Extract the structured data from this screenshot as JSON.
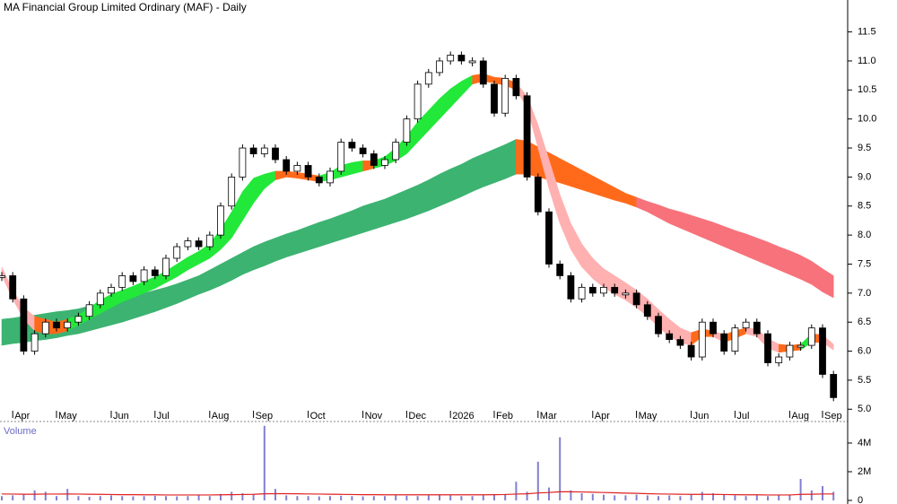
{
  "chart_data": [
    {
      "type": "candlestick",
      "title": "MA Financial Group Limited Ordinary (MAF) - Daily",
      "categories": [
        null,
        "Apr",
        null,
        null,
        null,
        "May",
        null,
        null,
        null,
        null,
        "Jun",
        null,
        null,
        null,
        "Jul",
        null,
        null,
        null,
        null,
        "Aug",
        null,
        null,
        null,
        "Sep",
        null,
        null,
        null,
        null,
        "Oct",
        null,
        null,
        null,
        null,
        "Nov",
        null,
        null,
        null,
        "Dec",
        null,
        null,
        null,
        "2026",
        null,
        null,
        null,
        "Feb",
        null,
        null,
        null,
        "Mar",
        null,
        null,
        null,
        null,
        "Apr",
        null,
        null,
        null,
        "May",
        null,
        null,
        null,
        null,
        "Jun",
        null,
        null,
        null,
        "Jul",
        null,
        null,
        null,
        null,
        "Aug",
        null,
        null,
        "Sep",
        null
      ],
      "values": [
        7.3,
        6.9,
        6.0,
        6.3,
        6.5,
        6.4,
        6.5,
        6.6,
        6.8,
        7.0,
        7.1,
        7.3,
        7.2,
        7.4,
        7.3,
        7.6,
        7.8,
        7.9,
        7.8,
        8.0,
        8.5,
        9.0,
        9.5,
        9.4,
        9.5,
        9.3,
        9.1,
        9.2,
        9.0,
        8.9,
        9.1,
        9.6,
        9.5,
        9.4,
        9.2,
        9.3,
        9.6,
        10.0,
        10.6,
        10.8,
        11.0,
        11.1,
        11.0,
        11.0,
        10.6,
        10.1,
        10.7,
        10.4,
        9.0,
        8.4,
        7.5,
        7.3,
        6.9,
        7.1,
        7.0,
        7.1,
        7.0,
        7.0,
        6.8,
        6.6,
        6.3,
        6.2,
        6.1,
        5.9,
        6.5,
        6.3,
        6.0,
        6.4,
        6.5,
        6.3,
        5.8,
        5.9,
        6.1,
        6.1,
        6.4,
        5.6,
        5.2
      ],
      "up_color": "#ffffff",
      "down_color": "#000000",
      "bands": [
        {
          "upper": [
            6.55,
            6.57,
            6.6,
            6.62,
            6.65,
            6.68,
            6.7,
            6.73,
            6.78,
            6.82,
            6.86,
            6.9,
            6.95,
            7.0,
            7.05,
            7.1,
            7.16,
            7.23,
            7.3,
            7.4,
            7.5,
            7.6,
            7.7,
            7.8,
            7.88,
            7.95,
            8.02,
            8.08,
            8.15,
            8.22,
            8.28,
            8.35,
            8.42,
            8.5,
            8.56,
            8.62,
            8.7,
            8.78,
            8.86,
            8.95,
            9.05,
            9.14,
            9.22,
            9.32,
            9.4,
            9.48,
            9.56,
            9.65,
            9.62,
            9.52,
            9.42,
            9.32,
            9.22,
            9.12,
            9.02,
            8.92,
            8.82,
            8.72,
            8.65,
            8.58,
            8.52,
            8.45,
            8.4,
            8.34,
            8.28,
            8.22,
            8.15,
            8.08,
            8.02,
            7.95,
            7.88,
            7.8,
            7.73,
            7.65,
            7.55,
            7.42,
            7.3
          ],
          "lower": [
            6.1,
            6.13,
            6.15,
            6.18,
            6.2,
            6.23,
            6.27,
            6.3,
            6.35,
            6.4,
            6.45,
            6.5,
            6.56,
            6.62,
            6.68,
            6.75,
            6.82,
            6.9,
            6.98,
            7.05,
            7.13,
            7.22,
            7.32,
            7.4,
            7.47,
            7.55,
            7.62,
            7.68,
            7.74,
            7.8,
            7.86,
            7.92,
            7.98,
            8.04,
            8.1,
            8.16,
            8.22,
            8.28,
            8.35,
            8.42,
            8.5,
            8.58,
            8.66,
            8.75,
            8.83,
            8.9,
            8.97,
            9.05,
            9.05,
            9.0,
            8.95,
            8.9,
            8.84,
            8.78,
            8.72,
            8.66,
            8.6,
            8.55,
            8.48,
            8.4,
            8.3,
            8.2,
            8.12,
            8.04,
            7.96,
            7.88,
            7.8,
            7.72,
            7.64,
            7.56,
            7.48,
            7.4,
            7.32,
            7.24,
            7.15,
            7.02,
            6.92
          ],
          "colors": [
            "#3cb371",
            "#3cb371",
            "#3cb371",
            "#3cb371",
            "#3cb371",
            "#3cb371",
            "#3cb371",
            "#3cb371",
            "#3cb371",
            "#3cb371",
            "#3cb371",
            "#3cb371",
            "#3cb371",
            "#3cb371",
            "#3cb371",
            "#3cb371",
            "#3cb371",
            "#3cb371",
            "#3cb371",
            "#3cb371",
            "#3cb371",
            "#3cb371",
            "#3cb371",
            "#3cb371",
            "#3cb371",
            "#3cb371",
            "#3cb371",
            "#3cb371",
            "#3cb371",
            "#3cb371",
            "#3cb371",
            "#3cb371",
            "#3cb371",
            "#3cb371",
            "#3cb371",
            "#3cb371",
            "#3cb371",
            "#3cb371",
            "#3cb371",
            "#3cb371",
            "#3cb371",
            "#3cb371",
            "#3cb371",
            "#3cb371",
            "#3cb371",
            "#3cb371",
            "#3cb371",
            "#3cb371",
            "#ff6a1a",
            "#ff6a1a",
            "#ff6a1a",
            "#ff6a1a",
            "#ff6a1a",
            "#ff6a1a",
            "#ff6a1a",
            "#ff6a1a",
            "#ff6a1a",
            "#ff6a1a",
            "#ff6a1a",
            "#f7727a",
            "#f7727a",
            "#f7727a",
            "#f7727a",
            "#f7727a",
            "#f7727a",
            "#f7727a",
            "#f7727a",
            "#f7727a",
            "#f7727a",
            "#f7727a",
            "#f7727a",
            "#f7727a",
            "#f7727a",
            "#f7727a",
            "#f7727a",
            "#f7727a",
            "#f7727a"
          ]
        },
        {
          "upper": [
            7.45,
            7.05,
            6.75,
            6.6,
            6.55,
            6.5,
            6.55,
            6.62,
            6.75,
            6.88,
            6.98,
            7.05,
            7.12,
            7.2,
            7.28,
            7.38,
            7.5,
            7.62,
            7.72,
            7.85,
            8.1,
            8.4,
            8.75,
            8.98,
            9.05,
            9.1,
            9.1,
            9.08,
            9.05,
            9.02,
            9.08,
            9.2,
            9.25,
            9.28,
            9.28,
            9.35,
            9.5,
            9.7,
            9.95,
            10.15,
            10.35,
            10.52,
            10.65,
            10.75,
            10.78,
            10.72,
            10.7,
            10.62,
            10.4,
            9.9,
            9.3,
            8.7,
            8.2,
            7.85,
            7.6,
            7.42,
            7.3,
            7.18,
            7.05,
            6.9,
            6.72,
            6.55,
            6.4,
            6.32,
            6.38,
            6.35,
            6.28,
            6.35,
            6.4,
            6.38,
            6.22,
            6.12,
            6.1,
            6.12,
            6.3,
            6.28,
            6.12
          ],
          "lower": [
            7.3,
            6.9,
            6.55,
            6.35,
            6.3,
            6.3,
            6.35,
            6.45,
            6.55,
            6.65,
            6.75,
            6.85,
            6.92,
            7.0,
            7.08,
            7.18,
            7.28,
            7.4,
            7.5,
            7.6,
            7.75,
            7.95,
            8.25,
            8.55,
            8.8,
            8.95,
            9.0,
            8.98,
            8.95,
            8.92,
            8.95,
            9.0,
            9.05,
            9.1,
            9.15,
            9.2,
            9.28,
            9.4,
            9.6,
            9.8,
            10.0,
            10.2,
            10.4,
            10.6,
            10.65,
            10.62,
            10.58,
            10.5,
            10.2,
            9.5,
            8.8,
            8.2,
            7.75,
            7.45,
            7.25,
            7.1,
            6.98,
            6.88,
            6.75,
            6.6,
            6.42,
            6.25,
            6.15,
            6.1,
            6.25,
            6.25,
            6.15,
            6.22,
            6.3,
            6.25,
            6.05,
            5.98,
            6.0,
            6.02,
            6.15,
            6.15,
            6.02
          ],
          "colors": [
            "#ff6a1a",
            "#ffb0b0",
            "#ffb0b0",
            "#ffb0b0",
            "#ff6a1a",
            "#ff6a1a",
            "#ff6a1a",
            "#22e83a",
            "#22e83a",
            "#22e83a",
            "#22e83a",
            "#22e83a",
            "#22e83a",
            "#22e83a",
            "#22e83a",
            "#22e83a",
            "#22e83a",
            "#22e83a",
            "#22e83a",
            "#22e83a",
            "#22e83a",
            "#22e83a",
            "#22e83a",
            "#22e83a",
            "#22e83a",
            "#22e83a",
            "#ff6a1a",
            "#ff6a1a",
            "#ff6a1a",
            "#ff6a1a",
            "#22e83a",
            "#22e83a",
            "#22e83a",
            "#22e83a",
            "#ff6a1a",
            "#22e83a",
            "#22e83a",
            "#22e83a",
            "#22e83a",
            "#22e83a",
            "#22e83a",
            "#22e83a",
            "#22e83a",
            "#22e83a",
            "#ff6a1a",
            "#ff6a1a",
            "#ff6a1a",
            "#ff6a1a",
            "#ffb0b0",
            "#ffb0b0",
            "#ffb0b0",
            "#ffb0b0",
            "#ffb0b0",
            "#ffb0b0",
            "#ffb0b0",
            "#ffb0b0",
            "#ffb0b0",
            "#ffb0b0",
            "#ffb0b0",
            "#ffb0b0",
            "#ffb0b0",
            "#ffb0b0",
            "#ffb0b0",
            "#ffb0b0",
            "#ff6a1a",
            "#ff6a1a",
            "#ffb0b0",
            "#ff6a1a",
            "#ff6a1a",
            "#ffb0b0",
            "#ffb0b0",
            "#ffb0b0",
            "#ff6a1a",
            "#ff6a1a",
            "#22e83a",
            "#ff6a1a",
            "#ffb0b0"
          ]
        }
      ],
      "ylim": [
        4.85,
        12.05
      ],
      "yticks": [
        {
          "value": 5,
          "label": "5.0"
        },
        5.5,
        {
          "value": 6,
          "label": "6.0"
        },
        6.5,
        {
          "value": 7,
          "label": "7.0"
        },
        7.5,
        {
          "value": 8,
          "label": "8.0"
        },
        8.5,
        {
          "value": 9,
          "label": "9.0"
        },
        9.5,
        {
          "value": 10,
          "label": "10.0"
        },
        10.5,
        {
          "value": 11,
          "label": "11.0"
        },
        11.5
      ]
    },
    {
      "type": "bar",
      "title": "Volume",
      "values": [
        300000,
        350000,
        400000,
        700000,
        600000,
        300000,
        800000,
        300000,
        250000,
        300000,
        350000,
        300000,
        280000,
        300000,
        320000,
        300000,
        280000,
        300000,
        350000,
        300000,
        450000,
        600000,
        500000,
        400000,
        5200000,
        800000,
        350000,
        300000,
        300000,
        280000,
        300000,
        320000,
        300000,
        280000,
        300000,
        300000,
        350000,
        320000,
        300000,
        350000,
        400000,
        350000,
        300000,
        300000,
        350000,
        400000,
        450000,
        1300000,
        600000,
        2700000,
        900000,
        4400000,
        700000,
        500000,
        450000,
        400000,
        350000,
        350000,
        400000,
        350000,
        300000,
        350000,
        300000,
        400000,
        600000,
        500000,
        400000,
        350000,
        300000,
        350000,
        300000,
        350000,
        400000,
        1500000,
        700000,
        1000000,
        600000
      ],
      "color": "#8080d0",
      "ma_values": [
        450000,
        440000,
        430000,
        430000,
        440000,
        440000,
        450000,
        440000,
        430000,
        420000,
        410000,
        400000,
        400000,
        390000,
        390000,
        380000,
        380000,
        380000,
        380000,
        380000,
        390000,
        400000,
        410000,
        420000,
        460000,
        470000,
        470000,
        460000,
        450000,
        440000,
        430000,
        420000,
        410000,
        400000,
        400000,
        390000,
        390000,
        390000,
        390000,
        390000,
        390000,
        390000,
        390000,
        390000,
        390000,
        400000,
        410000,
        440000,
        460000,
        520000,
        550000,
        600000,
        600000,
        590000,
        570000,
        550000,
        530000,
        510000,
        490000,
        470000,
        450000,
        440000,
        430000,
        420000,
        420000,
        420000,
        410000,
        400000,
        390000,
        390000,
        380000,
        380000,
        380000,
        420000,
        430000,
        450000,
        450000
      ],
      "ma_color": "#e02020",
      "ylim": [
        0,
        5500000
      ],
      "yticks": [
        0,
        {
          "value": 2000000,
          "label": "2M"
        },
        {
          "value": 4000000,
          "label": "4M"
        }
      ]
    }
  ]
}
